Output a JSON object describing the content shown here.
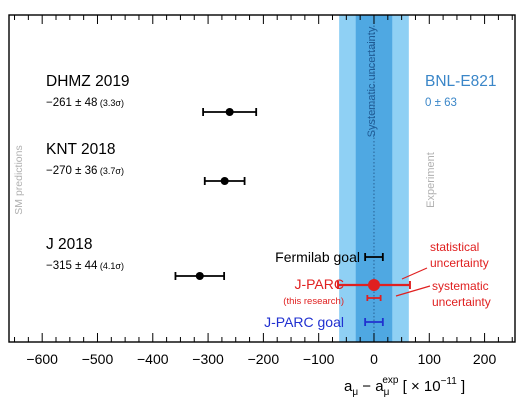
{
  "chart_data": {
    "type": "scatter",
    "title": "",
    "xlabel": "a_μ − a_μ^exp [ × 10^−11 ]",
    "xlabel_parts": {
      "main": "a",
      "sub1": "μ",
      "minus": "−",
      "main2": "a",
      "sub2": "μ",
      "sup2": "exp",
      "unit_open": "[ × 10",
      "unit_exp": "−11",
      "unit_close": "]"
    },
    "ylabel": "",
    "xlim": [
      -660,
      255
    ],
    "x_ticks": [
      -600,
      -500,
      -400,
      -300,
      -200,
      -100,
      0,
      100,
      200
    ],
    "x_tick_labels": [
      "−600",
      "−500",
      "−400",
      "−300",
      "−200",
      "−100",
      "0",
      "100",
      "200"
    ],
    "grid": false,
    "side_labels": {
      "left": "SM predictions",
      "right": "Experiment",
      "band": "Systematic uncertainty"
    },
    "experiment": {
      "name": "BNL-E821",
      "value_text": "0 ± 63",
      "center": 0,
      "total_uncertainty": 63,
      "systematic_uncertainty": 33,
      "color": "#3a86c8"
    },
    "sm_predictions": [
      {
        "name": "DHMZ 2019",
        "value_text": "−261 ± 48",
        "sigma_text": "(3.3σ)",
        "value": -261,
        "error": 48
      },
      {
        "name": "KNT 2018",
        "value_text": "−270 ± 36",
        "sigma_text": "(3.7σ)",
        "value": -270,
        "error": 36
      },
      {
        "name": "J 2018",
        "value_text": "−315 ± 44",
        "sigma_text": "(4.1σ)",
        "value": -315,
        "error": 44
      }
    ],
    "projections": [
      {
        "name": "Fermilab goal",
        "sub": "",
        "value": 0,
        "error": 16,
        "color": "#000000",
        "marker": "none"
      },
      {
        "name": "J-PARC",
        "sub": "(this research)",
        "value": 0,
        "error": 65,
        "syst_error": 12,
        "color": "#e02020",
        "marker": "circle"
      },
      {
        "name": "J-PARC goal",
        "sub": "",
        "value": 0,
        "error": 16,
        "color": "#2030d0",
        "marker": "none"
      }
    ],
    "annotations": [
      "statistical uncertainty",
      "systematic uncertainty"
    ],
    "annotation_lines": [
      [
        "statistical",
        "uncertainty"
      ],
      [
        "systematic",
        "uncertainty"
      ]
    ],
    "colors": {
      "band_outer": "#8fd0f4",
      "band_inner": "#4fa8e2",
      "sm_points": "#000000",
      "annotation": "#e02020"
    }
  }
}
